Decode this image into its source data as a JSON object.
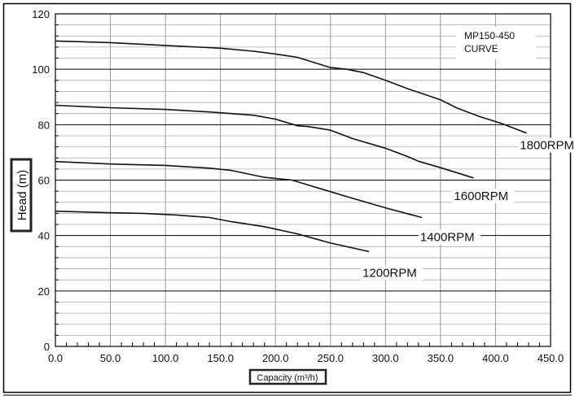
{
  "chart_data": {
    "type": "line",
    "title": "MP150-450",
    "subtitle": "CURVE",
    "xlabel": "Capacity (m³/h)",
    "ylabel": "Head (m)",
    "xlim": [
      0,
      450
    ],
    "ylim": [
      0,
      120
    ],
    "xticks": [
      "0.0",
      "50.0",
      "100.0",
      "150.0",
      "200.0",
      "250.0",
      "300.0",
      "350.0",
      "400.0",
      "450.0"
    ],
    "yticks": [
      "0",
      "20",
      "40",
      "60",
      "80",
      "100",
      "120"
    ],
    "grid": true,
    "series": [
      {
        "name": "1800RPM",
        "x": [
          0,
          50,
          100,
          150,
          180,
          200,
          220,
          250,
          265,
          280,
          300,
          320,
          350,
          365,
          385,
          405,
          428
        ],
        "y": [
          110.2,
          109.6,
          108.6,
          107.6,
          106.5,
          105.5,
          104.3,
          100.6,
          100,
          98.8,
          96,
          93,
          89,
          86,
          83,
          80.5,
          77
        ]
      },
      {
        "name": "1600RPM",
        "x": [
          0,
          50,
          100,
          140,
          180,
          200,
          220,
          230,
          250,
          270,
          300,
          320,
          330,
          350,
          380
        ],
        "y": [
          87,
          86.1,
          85.5,
          84.6,
          83.4,
          82,
          79.6,
          79.3,
          78,
          75,
          71.5,
          68.5,
          66.8,
          64.5,
          60.8
        ]
      },
      {
        "name": "1400RPM",
        "x": [
          0,
          50,
          100,
          140,
          160,
          190,
          215,
          240,
          265,
          300,
          333
        ],
        "y": [
          66.7,
          65.8,
          65.3,
          64.3,
          63.5,
          61,
          60,
          57,
          54,
          50,
          46.5
        ]
      },
      {
        "name": "1200RPM",
        "x": [
          0,
          50,
          80,
          110,
          140,
          160,
          190,
          220,
          250,
          285
        ],
        "y": [
          48.8,
          48.2,
          48,
          47.4,
          46.5,
          45,
          43.2,
          40.6,
          37.3,
          34.2
        ]
      }
    ]
  }
}
